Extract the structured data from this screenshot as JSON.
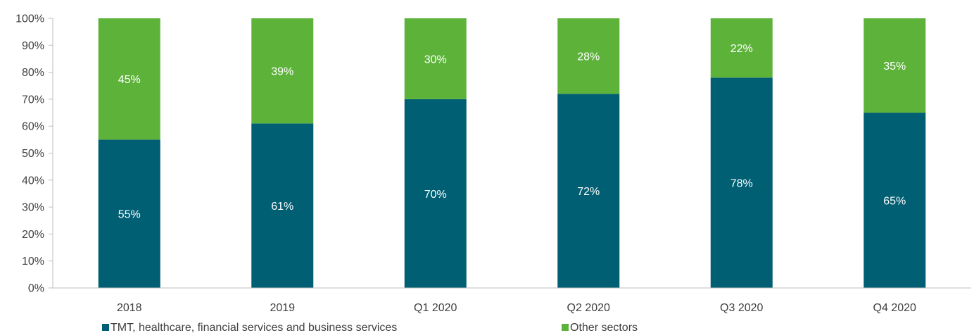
{
  "chart_data": {
    "type": "bar",
    "stacked": true,
    "categories": [
      "2018",
      "2019",
      "Q1 2020",
      "Q2 2020",
      "Q3 2020",
      "Q4 2020"
    ],
    "series": [
      {
        "name": "TMT, healthcare, financial services and business services",
        "values": [
          55,
          61,
          70,
          72,
          78,
          65
        ],
        "labels": [
          "55%",
          "61%",
          "70%",
          "72%",
          "78%",
          "65%"
        ],
        "color": "#005f73"
      },
      {
        "name": "Other sectors",
        "values": [
          45,
          39,
          30,
          28,
          22,
          35
        ],
        "labels": [
          "45%",
          "39%",
          "30%",
          "28%",
          "22%",
          "35%"
        ],
        "color": "#5db33a"
      }
    ],
    "ylim": [
      0,
      100
    ],
    "yticks": [
      "0%",
      "10%",
      "20%",
      "30%",
      "40%",
      "50%",
      "60%",
      "70%",
      "80%",
      "90%",
      "100%"
    ],
    "grid": false,
    "legend_position": "bottom",
    "title": "",
    "xlabel": "",
    "ylabel": ""
  }
}
